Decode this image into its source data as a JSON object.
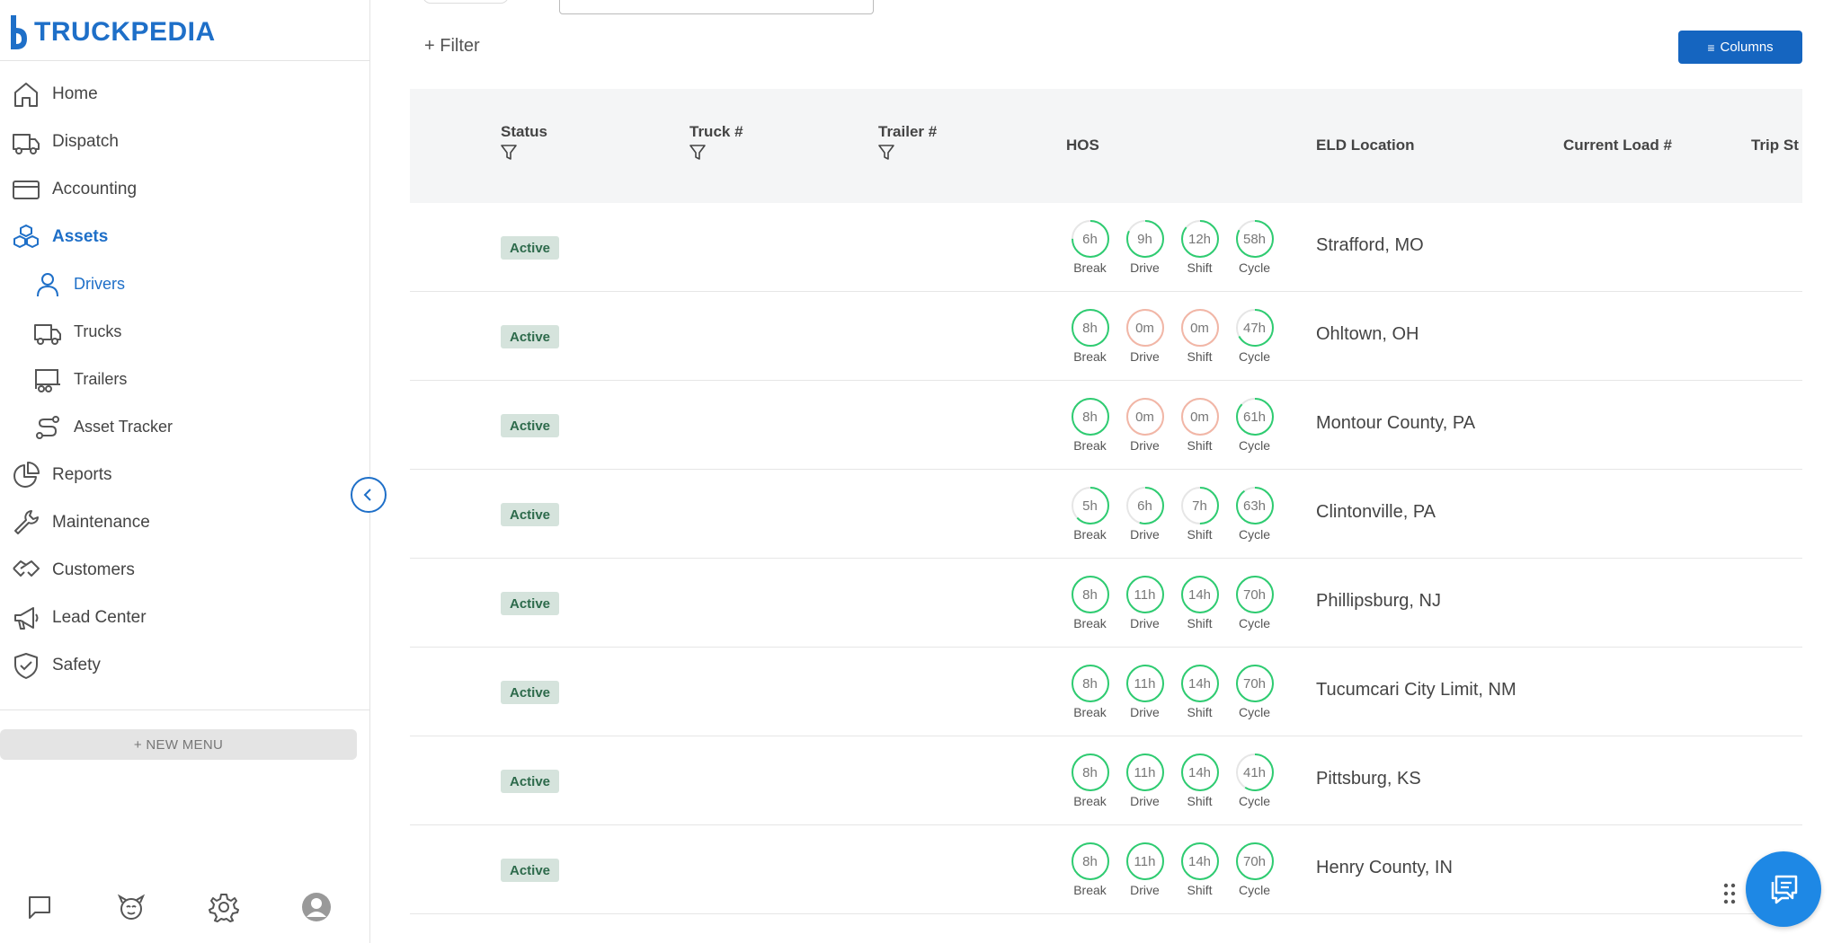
{
  "brand": {
    "name": "TRUCKPEDIA",
    "accent": "#1e6fc8"
  },
  "nav": {
    "items": [
      {
        "label": "Home",
        "icon": "home-icon",
        "active": false,
        "sub": false
      },
      {
        "label": "Dispatch",
        "icon": "truck-icon",
        "active": false,
        "sub": false
      },
      {
        "label": "Accounting",
        "icon": "credit-card-icon",
        "active": false,
        "sub": false
      },
      {
        "label": "Assets",
        "icon": "cubes-icon",
        "active": true,
        "sub": false
      },
      {
        "label": "Drivers",
        "icon": "person-icon",
        "active": true,
        "sub": true
      },
      {
        "label": "Trucks",
        "icon": "truck-icon",
        "active": false,
        "sub": true
      },
      {
        "label": "Trailers",
        "icon": "trailer-icon",
        "active": false,
        "sub": true
      },
      {
        "label": "Asset Tracker",
        "icon": "route-icon",
        "active": false,
        "sub": true
      },
      {
        "label": "Reports",
        "icon": "pie-chart-icon",
        "active": false,
        "sub": false
      },
      {
        "label": "Maintenance",
        "icon": "wrench-icon",
        "active": false,
        "sub": false
      },
      {
        "label": "Customers",
        "icon": "handshake-icon",
        "active": false,
        "sub": false
      },
      {
        "label": "Lead Center",
        "icon": "megaphone-icon",
        "active": false,
        "sub": false
      },
      {
        "label": "Safety",
        "icon": "shield-check-icon",
        "active": false,
        "sub": false
      }
    ],
    "new_menu_label": "+ NEW MENU"
  },
  "toolbar": {
    "filter_label": "+ Filter",
    "columns_label": "Columns"
  },
  "table": {
    "headers": {
      "status": "Status",
      "truck": "Truck #",
      "trailer": "Trailer #",
      "hos": "HOS",
      "eld_location": "ELD Location",
      "current_load": "Current Load #",
      "trip_status": "Trip St"
    },
    "hos_labels": [
      "Break",
      "Drive",
      "Shift",
      "Cycle"
    ],
    "rows": [
      {
        "status": "Active",
        "hos": [
          {
            "v": "6h",
            "f": 0.75,
            "c": "ok"
          },
          {
            "v": "9h",
            "f": 0.82,
            "c": "ok"
          },
          {
            "v": "12h",
            "f": 0.86,
            "c": "ok"
          },
          {
            "v": "58h",
            "f": 0.83,
            "c": "ok"
          }
        ],
        "location": "Strafford, MO"
      },
      {
        "status": "Active",
        "hos": [
          {
            "v": "8h",
            "f": 1.0,
            "c": "ok"
          },
          {
            "v": "0m",
            "f": 1.0,
            "c": "empty"
          },
          {
            "v": "0m",
            "f": 1.0,
            "c": "empty"
          },
          {
            "v": "47h",
            "f": 0.67,
            "c": "ok"
          }
        ],
        "location": "Ohltown, OH"
      },
      {
        "status": "Active",
        "hos": [
          {
            "v": "8h",
            "f": 1.0,
            "c": "ok"
          },
          {
            "v": "0m",
            "f": 1.0,
            "c": "empty"
          },
          {
            "v": "0m",
            "f": 1.0,
            "c": "empty"
          },
          {
            "v": "61h",
            "f": 0.87,
            "c": "ok"
          }
        ],
        "location": "Montour County, PA"
      },
      {
        "status": "Active",
        "hos": [
          {
            "v": "5h",
            "f": 0.63,
            "c": "ok"
          },
          {
            "v": "6h",
            "f": 0.55,
            "c": "ok"
          },
          {
            "v": "7h",
            "f": 0.5,
            "c": "ok"
          },
          {
            "v": "63h",
            "f": 0.9,
            "c": "ok"
          }
        ],
        "location": "Clintonville, PA"
      },
      {
        "status": "Active",
        "hos": [
          {
            "v": "8h",
            "f": 1.0,
            "c": "ok"
          },
          {
            "v": "11h",
            "f": 1.0,
            "c": "ok"
          },
          {
            "v": "14h",
            "f": 1.0,
            "c": "ok"
          },
          {
            "v": "70h",
            "f": 1.0,
            "c": "ok"
          }
        ],
        "location": "Phillipsburg, NJ"
      },
      {
        "status": "Active",
        "hos": [
          {
            "v": "8h",
            "f": 1.0,
            "c": "ok"
          },
          {
            "v": "11h",
            "f": 1.0,
            "c": "ok"
          },
          {
            "v": "14h",
            "f": 1.0,
            "c": "ok"
          },
          {
            "v": "70h",
            "f": 1.0,
            "c": "ok"
          }
        ],
        "location": "Tucumcari City Limit, NM"
      },
      {
        "status": "Active",
        "hos": [
          {
            "v": "8h",
            "f": 1.0,
            "c": "ok"
          },
          {
            "v": "11h",
            "f": 1.0,
            "c": "ok"
          },
          {
            "v": "14h",
            "f": 1.0,
            "c": "ok"
          },
          {
            "v": "41h",
            "f": 0.59,
            "c": "ok"
          }
        ],
        "location": "Pittsburg, KS"
      },
      {
        "status": "Active",
        "hos": [
          {
            "v": "8h",
            "f": 1.0,
            "c": "ok"
          },
          {
            "v": "11h",
            "f": 1.0,
            "c": "ok"
          },
          {
            "v": "14h",
            "f": 1.0,
            "c": "ok"
          },
          {
            "v": "70h",
            "f": 1.0,
            "c": "ok"
          }
        ],
        "location": "Henry County, IN"
      }
    ]
  },
  "colors": {
    "hos_ok": "#2ecc71",
    "hos_empty": "#f2b6a6",
    "badge_bg": "#d5e3dc",
    "badge_text": "#2d6a4b",
    "primary": "#1565c0"
  }
}
